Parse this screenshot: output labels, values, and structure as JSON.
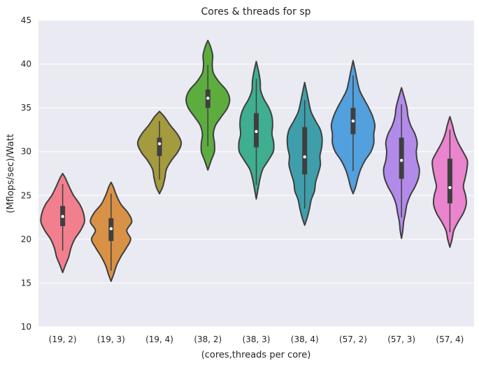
{
  "chart_data": {
    "type": "violin",
    "title": "Cores & threads for sp",
    "xlabel": "(cores,threads per core)",
    "ylabel": "(Mflops/sec)/Watt",
    "ylim": [
      10,
      45
    ],
    "yticks": [
      10,
      15,
      20,
      25,
      30,
      35,
      40,
      45
    ],
    "grid": true,
    "background": "#eaeaf2",
    "grid_color": "#ffffff",
    "line_color": "#3f3f3f",
    "categories": [
      "(19, 2)",
      "(19, 3)",
      "(19, 4)",
      "(38, 2)",
      "(38, 3)",
      "(38, 4)",
      "(57, 2)",
      "(57, 3)",
      "(57, 4)"
    ],
    "series": [
      {
        "category": "(19, 2)",
        "color": "#f27f8d",
        "min": 16.2,
        "q1": 21.5,
        "median": 22.6,
        "q3": 23.8,
        "max": 27.5,
        "whisker_low": 18.7,
        "whisker_high": 26.3,
        "profile": [
          [
            16.2,
            0
          ],
          [
            17.0,
            0.12
          ],
          [
            18.0,
            0.28
          ],
          [
            19.0,
            0.38
          ],
          [
            20.0,
            0.55
          ],
          [
            21.0,
            0.82
          ],
          [
            22.0,
            1.0
          ],
          [
            23.0,
            0.95
          ],
          [
            24.0,
            0.78
          ],
          [
            25.0,
            0.5
          ],
          [
            26.0,
            0.3
          ],
          [
            27.0,
            0.12
          ],
          [
            27.5,
            0
          ]
        ]
      },
      {
        "category": "(19, 3)",
        "color": "#d99145",
        "min": 15.2,
        "q1": 19.8,
        "median": 21.2,
        "q3": 22.4,
        "max": 26.5,
        "whisker_low": 16.4,
        "whisker_high": 25.2,
        "profile": [
          [
            15.2,
            0
          ],
          [
            16.0,
            0.12
          ],
          [
            17.0,
            0.25
          ],
          [
            18.0,
            0.45
          ],
          [
            19.0,
            0.7
          ],
          [
            20.0,
            0.9
          ],
          [
            21.0,
            0.72
          ],
          [
            22.0,
            0.95
          ],
          [
            23.0,
            0.78
          ],
          [
            24.0,
            0.45
          ],
          [
            25.0,
            0.25
          ],
          [
            26.0,
            0.1
          ],
          [
            26.5,
            0
          ]
        ]
      },
      {
        "category": "(19, 4)",
        "color": "#a49a3e",
        "min": 25.2,
        "q1": 29.5,
        "median": 30.9,
        "q3": 31.6,
        "max": 34.6,
        "whisker_low": 26.8,
        "whisker_high": 33.5,
        "profile": [
          [
            25.2,
            0
          ],
          [
            26.0,
            0.15
          ],
          [
            27.0,
            0.25
          ],
          [
            28.0,
            0.32
          ],
          [
            29.0,
            0.55
          ],
          [
            30.0,
            0.85
          ],
          [
            31.0,
            1.0
          ],
          [
            32.0,
            0.82
          ],
          [
            33.0,
            0.5
          ],
          [
            34.0,
            0.22
          ],
          [
            34.6,
            0
          ]
        ]
      },
      {
        "category": "(38, 2)",
        "color": "#5cad3e",
        "min": 27.9,
        "q1": 35.0,
        "median": 36.1,
        "q3": 37.1,
        "max": 42.7,
        "whisker_low": 30.6,
        "whisker_high": 39.9,
        "profile": [
          [
            27.9,
            0
          ],
          [
            29.0,
            0.15
          ],
          [
            30.0,
            0.3
          ],
          [
            31.0,
            0.3
          ],
          [
            32.0,
            0.25
          ],
          [
            33.0,
            0.35
          ],
          [
            34.0,
            0.62
          ],
          [
            35.0,
            0.9
          ],
          [
            36.0,
            1.0
          ],
          [
            37.0,
            0.85
          ],
          [
            38.0,
            0.5
          ],
          [
            39.0,
            0.25
          ],
          [
            40.0,
            0.2
          ],
          [
            41.0,
            0.22
          ],
          [
            42.0,
            0.12
          ],
          [
            42.7,
            0
          ]
        ]
      },
      {
        "category": "(38, 3)",
        "color": "#3fae91",
        "min": 24.6,
        "q1": 30.5,
        "median": 32.3,
        "q3": 34.4,
        "max": 40.3,
        "whisker_low": 26.2,
        "whisker_high": 38.3,
        "profile": [
          [
            24.6,
            0
          ],
          [
            26.0,
            0.1
          ],
          [
            27.0,
            0.18
          ],
          [
            28.0,
            0.3
          ],
          [
            29.0,
            0.55
          ],
          [
            30.0,
            0.78
          ],
          [
            31.0,
            0.8
          ],
          [
            32.0,
            0.72
          ],
          [
            33.0,
            0.75
          ],
          [
            34.0,
            0.72
          ],
          [
            35.0,
            0.58
          ],
          [
            36.0,
            0.35
          ],
          [
            37.0,
            0.2
          ],
          [
            38.0,
            0.18
          ],
          [
            39.0,
            0.12
          ],
          [
            40.3,
            0
          ]
        ]
      },
      {
        "category": "(38, 4)",
        "color": "#3e9faa",
        "min": 21.6,
        "q1": 27.4,
        "median": 29.4,
        "q3": 32.8,
        "max": 37.9,
        "whisker_low": 23.5,
        "whisker_high": 35.9,
        "profile": [
          [
            21.6,
            0
          ],
          [
            22.5,
            0.12
          ],
          [
            23.5,
            0.22
          ],
          [
            24.5,
            0.3
          ],
          [
            25.5,
            0.45
          ],
          [
            26.5,
            0.5
          ],
          [
            27.5,
            0.62
          ],
          [
            28.5,
            0.72
          ],
          [
            29.5,
            0.7
          ],
          [
            30.5,
            0.78
          ],
          [
            31.5,
            0.8
          ],
          [
            32.5,
            0.72
          ],
          [
            33.5,
            0.5
          ],
          [
            34.5,
            0.3
          ],
          [
            35.5,
            0.2
          ],
          [
            36.5,
            0.12
          ],
          [
            37.9,
            0
          ]
        ]
      },
      {
        "category": "(57, 2)",
        "color": "#52a0dd",
        "min": 25.2,
        "q1": 32.0,
        "median": 33.5,
        "q3": 35.0,
        "max": 40.4,
        "whisker_low": 27.8,
        "whisker_high": 38.7,
        "profile": [
          [
            25.2,
            0
          ],
          [
            26.0,
            0.12
          ],
          [
            27.0,
            0.22
          ],
          [
            28.0,
            0.35
          ],
          [
            29.0,
            0.55
          ],
          [
            30.0,
            0.82
          ],
          [
            31.0,
            0.95
          ],
          [
            32.0,
            0.95
          ],
          [
            33.0,
            1.0
          ],
          [
            34.0,
            0.9
          ],
          [
            35.0,
            0.72
          ],
          [
            36.0,
            0.5
          ],
          [
            37.0,
            0.3
          ],
          [
            38.0,
            0.2
          ],
          [
            39.0,
            0.12
          ],
          [
            40.4,
            0
          ]
        ]
      },
      {
        "category": "(57, 3)",
        "color": "#b28bea",
        "min": 20.1,
        "q1": 26.9,
        "median": 29.0,
        "q3": 31.6,
        "max": 37.3,
        "whisker_low": 22.5,
        "whisker_high": 35.4,
        "profile": [
          [
            20.1,
            0
          ],
          [
            21.0,
            0.06
          ],
          [
            22.0,
            0.1
          ],
          [
            23.0,
            0.18
          ],
          [
            24.0,
            0.25
          ],
          [
            25.0,
            0.4
          ],
          [
            26.0,
            0.62
          ],
          [
            27.0,
            0.78
          ],
          [
            28.0,
            0.82
          ],
          [
            29.0,
            0.72
          ],
          [
            30.0,
            0.68
          ],
          [
            31.0,
            0.72
          ],
          [
            32.0,
            0.62
          ],
          [
            33.0,
            0.42
          ],
          [
            34.0,
            0.3
          ],
          [
            35.0,
            0.25
          ],
          [
            36.0,
            0.15
          ],
          [
            37.3,
            0
          ]
        ]
      },
      {
        "category": "(57, 4)",
        "color": "#ea84ce",
        "min": 19.1,
        "q1": 24.1,
        "median": 25.9,
        "q3": 29.2,
        "max": 34.0,
        "whisker_low": 20.8,
        "whisker_high": 32.5,
        "profile": [
          [
            19.1,
            0
          ],
          [
            20.0,
            0.1
          ],
          [
            21.0,
            0.18
          ],
          [
            22.0,
            0.38
          ],
          [
            23.0,
            0.62
          ],
          [
            24.0,
            0.75
          ],
          [
            25.0,
            0.72
          ],
          [
            26.0,
            0.62
          ],
          [
            27.0,
            0.7
          ],
          [
            28.0,
            0.78
          ],
          [
            29.0,
            0.8
          ],
          [
            30.0,
            0.6
          ],
          [
            31.0,
            0.38
          ],
          [
            32.0,
            0.22
          ],
          [
            33.0,
            0.12
          ],
          [
            34.0,
            0
          ]
        ]
      }
    ]
  }
}
